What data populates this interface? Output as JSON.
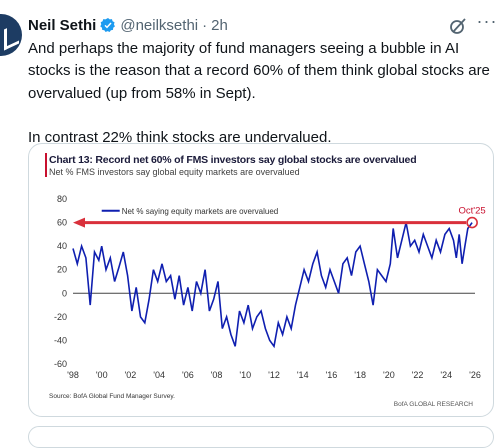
{
  "tweet": {
    "name": "Neil Sethi",
    "handle": "@neilksethi",
    "separator": "·",
    "time": "2h",
    "more_label": "···",
    "text_line1": "And perhaps the majority of fund managers seeing a bubble in AI stocks is the reason that a record 60% of them think global stocks are overvalued (up from 58% in Sept).",
    "text_line2": "In contrast 22% think stocks are undervalued."
  },
  "chart_data": {
    "type": "line",
    "title": "Chart 13: Record net 60% of FMS investors say global stocks are overvalued",
    "subtitle": "Net % FMS investors say global equity markets are overvalued",
    "legend": "Net % saying equity markets are overvalued",
    "annotation": "Oct'25",
    "source": "Source: BofA Global Fund Manager Survey.",
    "brand": "BofA GLOBAL RESEARCH",
    "ylim": [
      -60,
      80
    ],
    "yticks": [
      "80",
      "60",
      "40",
      "20",
      "0",
      "-20",
      "-40",
      "-60"
    ],
    "xlim": [
      1998,
      2026
    ],
    "xticks": [
      "'98",
      "'00",
      "'02",
      "'04",
      "'06",
      "'08",
      "'10",
      "'12",
      "'14",
      "'16",
      "'18",
      "'20",
      "'22",
      "'24",
      "'26"
    ],
    "series": [
      {
        "x": [
          1998.0,
          1998.3,
          1998.6,
          1998.9,
          1999.2,
          1999.5,
          1999.8,
          2000.0,
          2000.3,
          2000.6,
          2000.9,
          2001.2,
          2001.5,
          2001.8,
          2002.1,
          2002.4,
          2002.7,
          2003.0,
          2003.3,
          2003.6,
          2003.9,
          2004.2,
          2004.5,
          2004.8,
          2005.1,
          2005.4,
          2005.7,
          2006.0,
          2006.3,
          2006.6,
          2006.9,
          2007.2,
          2007.5,
          2007.8,
          2008.1,
          2008.4,
          2008.7,
          2009.0,
          2009.3,
          2009.6,
          2009.9,
          2010.2,
          2010.5,
          2010.8,
          2011.1,
          2011.4,
          2011.7,
          2012.0,
          2012.3,
          2012.6,
          2012.9,
          2013.2,
          2013.5,
          2013.8,
          2014.1,
          2014.4,
          2014.7,
          2015.0,
          2015.3,
          2015.6,
          2015.9,
          2016.2,
          2016.5,
          2016.8,
          2017.1,
          2017.4,
          2017.7,
          2018.0,
          2018.3,
          2018.6,
          2018.9,
          2019.2,
          2019.5,
          2019.8,
          2020.1,
          2020.3,
          2020.6,
          2020.9,
          2021.2,
          2021.5,
          2021.8,
          2022.1,
          2022.4,
          2022.7,
          2023.0,
          2023.3,
          2023.6,
          2023.9,
          2024.2,
          2024.5,
          2024.7,
          2024.9,
          2025.1,
          2025.3,
          2025.5,
          2025.8
        ],
        "y": [
          38,
          25,
          40,
          30,
          -10,
          35,
          28,
          40,
          20,
          30,
          10,
          22,
          35,
          15,
          -15,
          5,
          -20,
          -25,
          -5,
          20,
          10,
          25,
          10,
          15,
          -5,
          15,
          -10,
          5,
          -15,
          10,
          0,
          20,
          -15,
          -5,
          10,
          -30,
          -20,
          -35,
          -45,
          -15,
          -25,
          -10,
          -30,
          -20,
          -15,
          -30,
          -40,
          -45,
          -25,
          -35,
          -20,
          -30,
          -10,
          5,
          20,
          10,
          25,
          35,
          15,
          5,
          20,
          10,
          0,
          25,
          30,
          15,
          35,
          40,
          25,
          10,
          -10,
          20,
          15,
          10,
          25,
          55,
          30,
          45,
          60,
          40,
          45,
          35,
          50,
          40,
          30,
          45,
          35,
          50,
          55,
          45,
          30,
          50,
          25,
          40,
          55,
          60
        ]
      }
    ]
  }
}
